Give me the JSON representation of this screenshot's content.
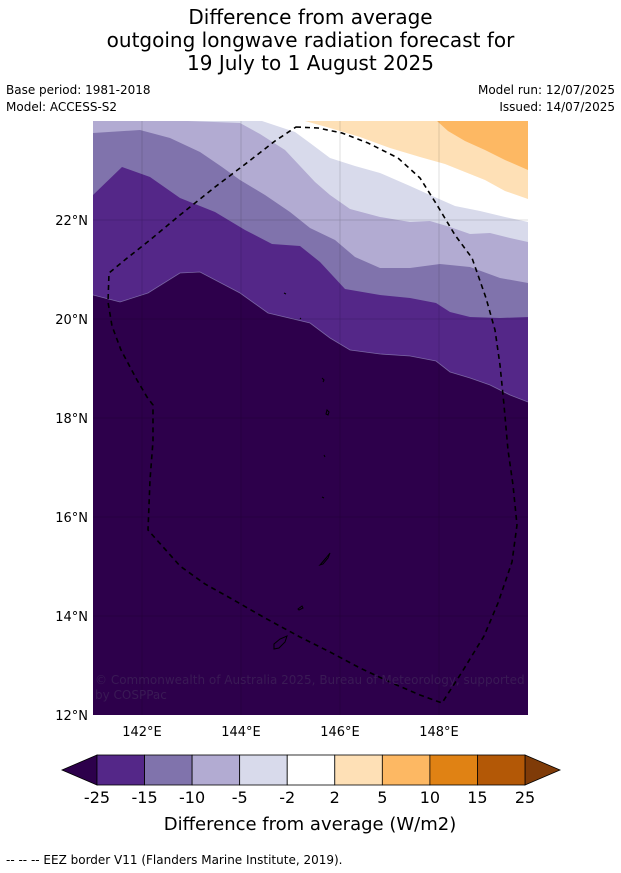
{
  "title": {
    "line1": "Difference from average",
    "line2": "outgoing longwave radiation forecast for",
    "line3": "19 July to 1 August 2025"
  },
  "meta": {
    "base_period": "Base period: 1981-2018",
    "model": "Model: ACCESS-S2",
    "model_run": "Model run: 12/07/2025",
    "issued": "Issued: 14/07/2025"
  },
  "map": {
    "lon_range": [
      141,
      149.8
    ],
    "lat_range": [
      12,
      24
    ],
    "lat_ticks": [
      "22°N",
      "20°N",
      "18°N",
      "16°N",
      "14°N",
      "12°N"
    ],
    "lon_ticks": [
      "142°E",
      "144°E",
      "146°E",
      "148°E"
    ],
    "copyright_line1": "© Commonwealth of Australia 2025, Bureau of Meteorology, supported",
    "copyright_line2": "by COSPPac"
  },
  "colorbar": {
    "tick_labels": [
      "-25",
      "-15",
      "-10",
      "-5",
      "-2",
      "2",
      "5",
      "10",
      "15",
      "25"
    ],
    "colors": [
      "#542788",
      "#8073ac",
      "#b2abd2",
      "#d8daeb",
      "#ffffff",
      "#fee0b6",
      "#fdb863",
      "#e08214",
      "#b35806"
    ],
    "under_color": "#2d004b",
    "over_color": "#7f3b08",
    "label": "Difference from average (W/m2)"
  },
  "footer": {
    "legend_text": "--  --  -- EEZ border V11 (Flanders Marine Institute, 2019)."
  }
}
